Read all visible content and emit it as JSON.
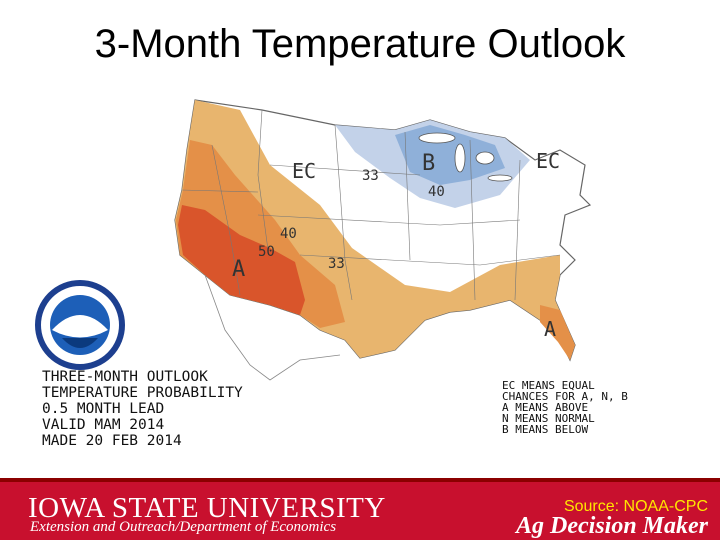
{
  "slide": {
    "title": "3-Month Temperature Outlook"
  },
  "map": {
    "region_labels": {
      "ec_north": "EC",
      "ec_east": "EC",
      "above": "A",
      "above_fl": "A",
      "below": "B"
    },
    "contour_labels": {
      "c33": "33",
      "c40_below": "40",
      "c40_above": "40",
      "c50": "50",
      "c33_above": "33"
    },
    "info_lines": [
      "THREE-MONTH OUTLOOK",
      "TEMPERATURE PROBABILITY",
      "0.5 MONTH LEAD",
      "VALID MAM 2014",
      "MADE 20 FEB 2014"
    ],
    "legend_lines": [
      "EC MEANS EQUAL",
      "CHANCES FOR A, N, B",
      "A MEANS ABOVE",
      "N MEANS NORMAL",
      "B MEANS BELOW"
    ],
    "colors": {
      "above_33": "#e8b56e",
      "above_40": "#e49048",
      "above_50": "#d9552b",
      "below_33": "#c3d2e9",
      "below_40": "#8fb0d9",
      "ocean": "#ffffff",
      "land": "#ffffff"
    }
  },
  "footer": {
    "university": "IOWA STATE UNIVERSITY",
    "department": "Extension and Outreach/Department of Economics",
    "source": "Source: NOAA-CPC",
    "brand": "Ag Decision Maker"
  }
}
